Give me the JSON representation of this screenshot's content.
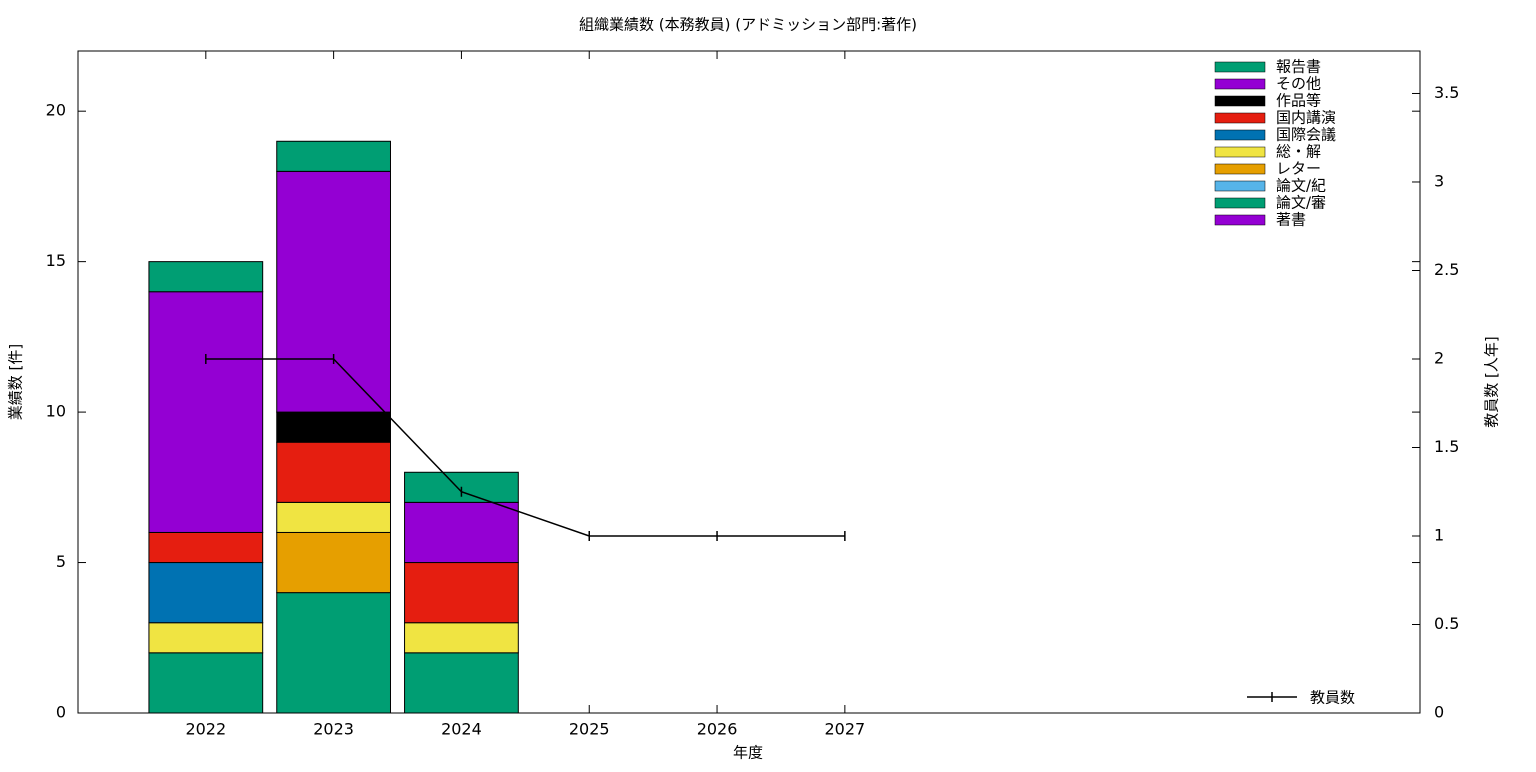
{
  "chart_data": {
    "type": "bar",
    "title": "組織業績数 (本務教員) (アドミッション部門:著作)",
    "x_label": "年度",
    "y_label": "業績数 [件]",
    "y2_label": "教員数 [人年]",
    "x": [
      2022,
      2023,
      2024,
      2025,
      2026,
      2027
    ],
    "xlim": [
      2021,
      2031.5
    ],
    "xticks": [
      2022,
      2023,
      2024,
      2025,
      2026,
      2027
    ],
    "ylim": [
      0,
      22
    ],
    "yticks": [
      0,
      5,
      10,
      15,
      20
    ],
    "y2lim": [
      0,
      3.74
    ],
    "y2ticks": [
      0,
      0.5,
      1,
      1.5,
      2,
      2.5,
      3,
      3.5
    ],
    "stacked": true,
    "series": [
      {
        "name": "報告書",
        "color": "#009e73",
        "values": [
          1,
          1,
          1,
          0,
          0,
          0
        ]
      },
      {
        "name": "その他",
        "color": "#9400d3",
        "values": [
          8,
          8,
          2,
          0,
          0,
          0
        ]
      },
      {
        "name": "作品等",
        "color": "#000000",
        "values": [
          0,
          1,
          0,
          0,
          0,
          0
        ]
      },
      {
        "name": "国内講演",
        "color": "#e51e10",
        "values": [
          1,
          2,
          2,
          0,
          0,
          0
        ]
      },
      {
        "name": "国際会議",
        "color": "#0072b2",
        "values": [
          2,
          0,
          0,
          0,
          0,
          0
        ]
      },
      {
        "name": "総・解",
        "color": "#f0e442",
        "values": [
          1,
          1,
          1,
          0,
          0,
          0
        ]
      },
      {
        "name": "レター",
        "color": "#e69f00",
        "values": [
          0,
          2,
          0,
          0,
          0,
          0
        ]
      },
      {
        "name": "論文/紀",
        "color": "#56b4e9",
        "values": [
          0,
          0,
          0,
          0,
          0,
          0
        ]
      },
      {
        "name": "論文/審",
        "color": "#009e73",
        "values": [
          2,
          4,
          2,
          0,
          0,
          0
        ]
      },
      {
        "name": "著書",
        "color": "#9400d3",
        "values": [
          0,
          0,
          0,
          0,
          0,
          0
        ]
      },
      {
        "name": "教員数",
        "color": "#000000",
        "type": "line",
        "axis": "y2",
        "values": [
          2,
          2,
          1.25,
          1,
          1,
          1
        ]
      }
    ]
  }
}
